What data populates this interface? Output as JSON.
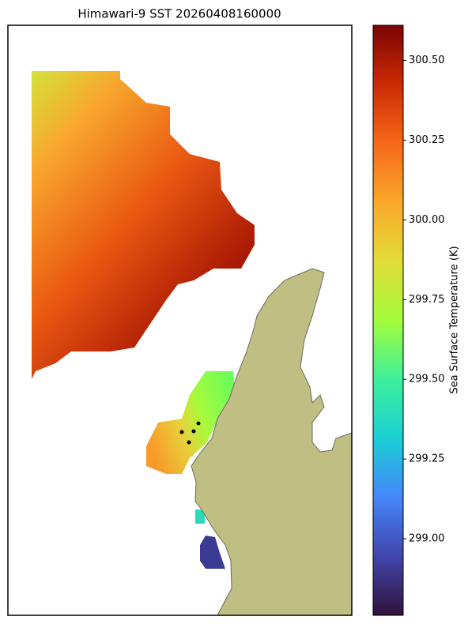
{
  "title": "Himawari-9 SST 20260408160000",
  "colorbar": {
    "label": "Sea Surface Temperature (K)",
    "lim": [
      298.76,
      300.61
    ],
    "ticks": [
      {
        "value": 299.0,
        "label": "299.00"
      },
      {
        "value": 299.25,
        "label": "299.25"
      },
      {
        "value": 299.5,
        "label": "299.50"
      },
      {
        "value": 299.75,
        "label": "299.75"
      },
      {
        "value": 300.0,
        "label": "300.00"
      },
      {
        "value": 300.25,
        "label": "300.25"
      },
      {
        "value": 300.5,
        "label": "300.50"
      }
    ]
  }
}
